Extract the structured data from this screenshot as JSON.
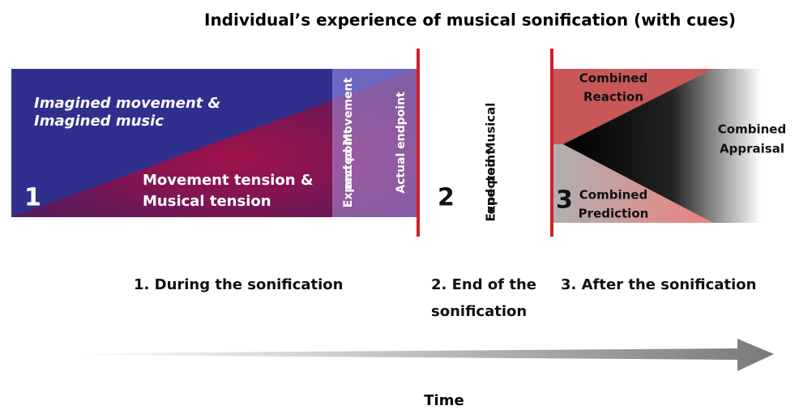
{
  "title": "Individual’s experience of musical sonification (with cues)",
  "panel1": {
    "number": "1",
    "imagined": [
      "Imagined movement &",
      "Imagined music"
    ],
    "tension": [
      "Movement tension &",
      "Musical tension"
    ],
    "expected_movement": [
      "Expected Movement",
      "end point"
    ],
    "actual": "Actual endpoint"
  },
  "panel2": {
    "number": "2",
    "expected_musical": [
      "Expected Musical",
      "end point"
    ]
  },
  "panel3": {
    "number": "3",
    "reaction": [
      "Combined",
      "Reaction"
    ],
    "appraisal": [
      "Combined",
      "Appraisal"
    ],
    "prediction": [
      "Combined",
      "Prediction"
    ]
  },
  "steps": [
    [
      "1. During the sonification"
    ],
    [
      "2. End of the",
      "sonification"
    ],
    [
      "3. After the sonification"
    ]
  ],
  "time": "Time"
}
